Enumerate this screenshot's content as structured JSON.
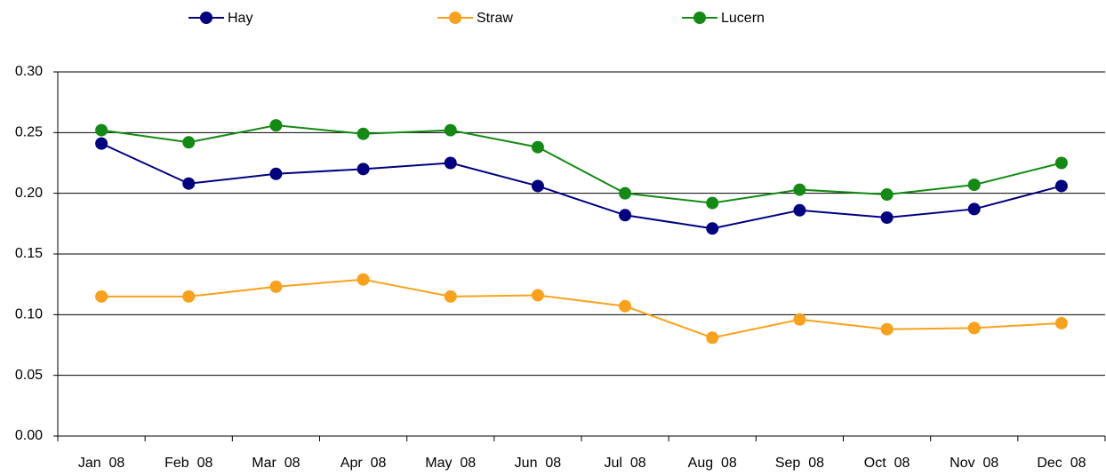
{
  "chart_data": {
    "type": "line",
    "categories": [
      "Jan  08",
      "Feb  08",
      "Mar  08",
      "Apr  08",
      "May  08",
      "Jun  08",
      "Jul  08",
      "Aug  08",
      "Sep  08",
      "Oct  08",
      "Nov  08",
      "Dec  08"
    ],
    "series": [
      {
        "name": "Hay",
        "color": "#000080",
        "values": [
          0.241,
          0.208,
          0.216,
          0.22,
          0.225,
          0.206,
          0.182,
          0.171,
          0.186,
          0.18,
          0.187,
          0.206
        ]
      },
      {
        "name": "Straw",
        "color": "#f9a11b",
        "values": [
          0.115,
          0.115,
          0.123,
          0.129,
          0.115,
          0.116,
          0.107,
          0.081,
          0.096,
          0.088,
          0.089,
          0.093
        ]
      },
      {
        "name": "Lucern",
        "color": "#138a13",
        "values": [
          0.252,
          0.242,
          0.256,
          0.249,
          0.252,
          0.238,
          0.2,
          0.192,
          0.203,
          0.199,
          0.207,
          0.225
        ]
      }
    ],
    "ylim": [
      0,
      0.3
    ],
    "yticks": [
      {
        "value": 0,
        "label": "0.00"
      },
      0.05,
      {
        "value": 0.1,
        "label": "0.10"
      },
      0.15,
      {
        "value": 0.2,
        "label": "0.20"
      },
      0.25,
      {
        "value": 0.3,
        "label": "0.30"
      }
    ],
    "grid": true,
    "legend": "top"
  }
}
